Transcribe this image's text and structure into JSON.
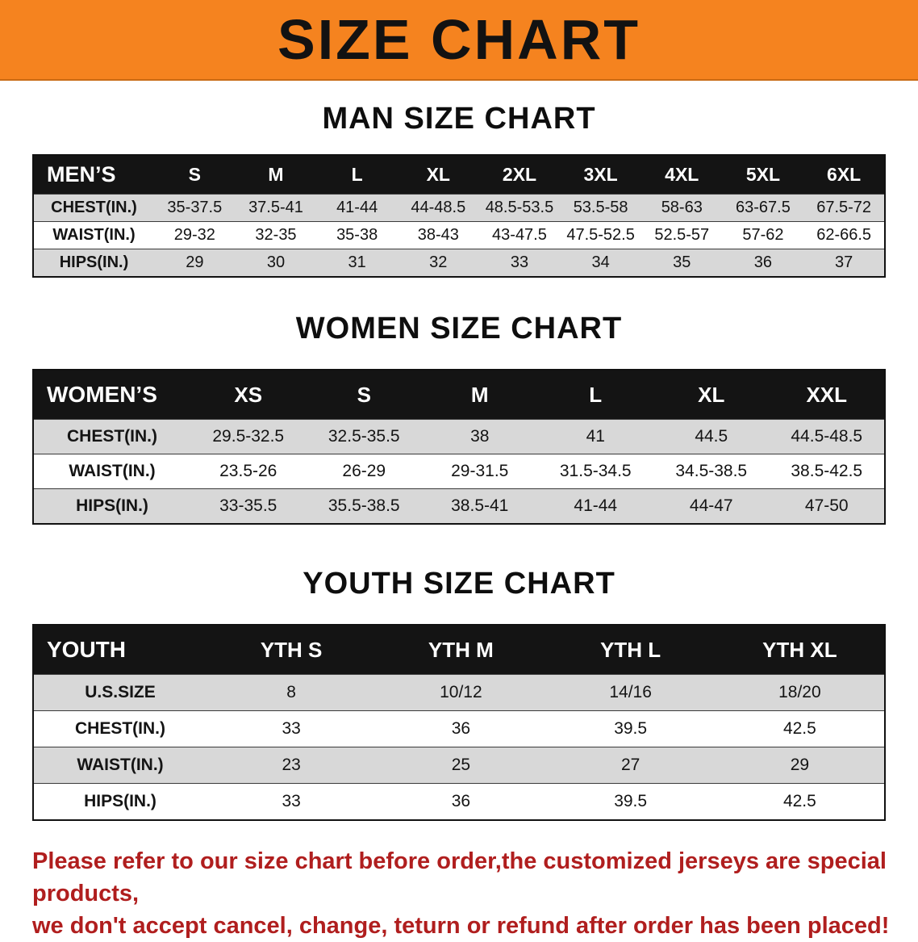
{
  "banner": {
    "title": "SIZE CHART",
    "bg_color": "#f5831f"
  },
  "sections": [
    {
      "heading": "MAN SIZE CHART",
      "table": {
        "header": [
          "MEN’S",
          "S",
          "M",
          "L",
          "XL",
          "2XL",
          "3XL",
          "4XL",
          "5XL",
          "6XL"
        ],
        "rows": [
          [
            "CHEST(IN.)",
            "35-37.5",
            "37.5-41",
            "41-44",
            "44-48.5",
            "48.5-53.5",
            "53.5-58",
            "58-63",
            "63-67.5",
            "67.5-72"
          ],
          [
            "WAIST(IN.)",
            "29-32",
            "32-35",
            "35-38",
            "38-43",
            "43-47.5",
            "47.5-52.5",
            "52.5-57",
            "57-62",
            "62-66.5"
          ],
          [
            "HIPS(IN.)",
            "29",
            "30",
            "31",
            "32",
            "33",
            "34",
            "35",
            "36",
            "37"
          ]
        ]
      }
    },
    {
      "heading": "WOMEN SIZE CHART",
      "table": {
        "header": [
          "WOMEN’S",
          "XS",
          "S",
          "M",
          "L",
          "XL",
          "XXL"
        ],
        "rows": [
          [
            "CHEST(IN.)",
            "29.5-32.5",
            "32.5-35.5",
            "38",
            "41",
            "44.5",
            "44.5-48.5"
          ],
          [
            "WAIST(IN.)",
            "23.5-26",
            "26-29",
            "29-31.5",
            "31.5-34.5",
            "34.5-38.5",
            "38.5-42.5"
          ],
          [
            "HIPS(IN.)",
            "33-35.5",
            "35.5-38.5",
            "38.5-41",
            "41-44",
            "44-47",
            "47-50"
          ]
        ]
      }
    },
    {
      "heading": "YOUTH SIZE CHART",
      "table": {
        "header": [
          "YOUTH",
          "YTH S",
          "YTH M",
          "YTH L",
          "YTH XL"
        ],
        "rows": [
          [
            "U.S.SIZE",
            "8",
            "10/12",
            "14/16",
            "18/20"
          ],
          [
            "CHEST(IN.)",
            "33",
            "36",
            "39.5",
            "42.5"
          ],
          [
            "WAIST(IN.)",
            "23",
            "25",
            "27",
            "29"
          ],
          [
            "HIPS(IN.)",
            "33",
            "36",
            "39.5",
            "42.5"
          ]
        ]
      }
    }
  ],
  "footer": {
    "text_color": "#b01e1e",
    "lines": [
      "Please refer to our size chart before order,the customized jerseys are special products,",
      "we don't accept cancel, change, teturn or refund after order has been placed!"
    ]
  }
}
